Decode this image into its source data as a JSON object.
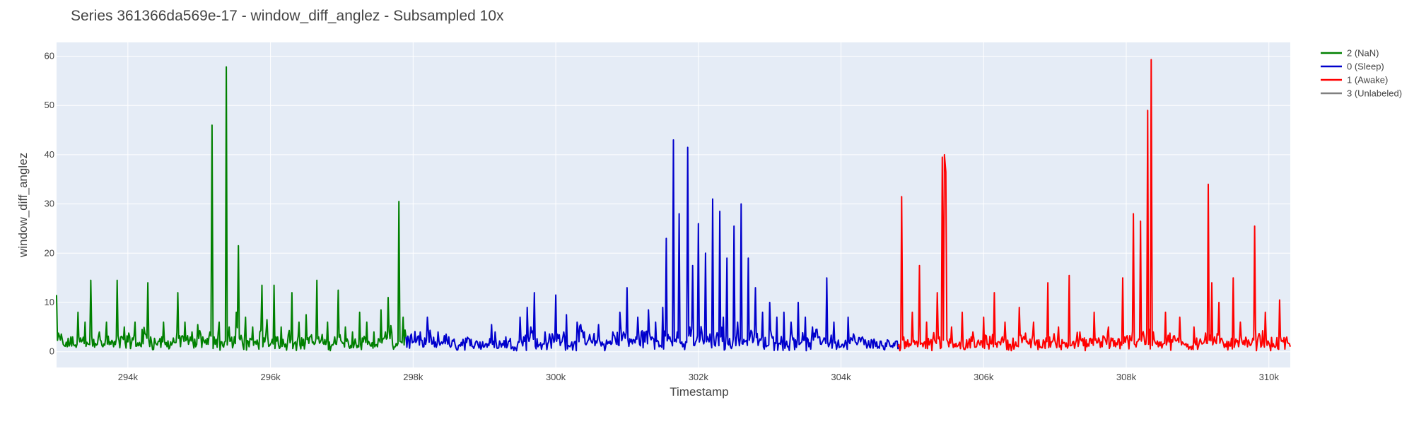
{
  "chart_data": {
    "type": "line",
    "title": "Series 361366da569e-17 - window_diff_anglez - Subsampled 10x",
    "xlabel": "Timestamp",
    "ylabel": "window_diff_anglez",
    "xlim": [
      293000,
      310300
    ],
    "ylim": [
      -3.2,
      62.8
    ],
    "x_ticks": [
      294000,
      296000,
      298000,
      300000,
      302000,
      304000,
      306000,
      308000,
      310000
    ],
    "x_tick_labels": [
      "294k",
      "296k",
      "298k",
      "300k",
      "302k",
      "304k",
      "306k",
      "308k",
      "310k"
    ],
    "y_ticks": [
      0,
      10,
      20,
      30,
      40,
      50,
      60
    ],
    "y_tick_labels": [
      "0",
      "10",
      "20",
      "30",
      "40",
      "50",
      "60"
    ],
    "grid": true,
    "legend_position": "right",
    "plot_background": "#e5ecf6",
    "series": [
      {
        "name": "2 (NaN)",
        "color": "#008000",
        "x_range": [
          293000,
          297900
        ],
        "points": [
          [
            293000,
            11.5
          ],
          [
            293080,
            2.5
          ],
          [
            293150,
            1.0
          ],
          [
            293200,
            3.0
          ],
          [
            293250,
            1.2
          ],
          [
            293300,
            8.0
          ],
          [
            293350,
            2.0
          ],
          [
            293400,
            6.0
          ],
          [
            293450,
            1.5
          ],
          [
            293480,
            14.5
          ],
          [
            293520,
            2.5
          ],
          [
            293600,
            4.0
          ],
          [
            293650,
            1.0
          ],
          [
            293700,
            6.0
          ],
          [
            293750,
            2.0
          ],
          [
            293800,
            1.0
          ],
          [
            293850,
            14.5
          ],
          [
            293900,
            3.0
          ],
          [
            293950,
            5.0
          ],
          [
            294000,
            2.0
          ],
          [
            294100,
            6.0
          ],
          [
            294150,
            1.2
          ],
          [
            294200,
            4.5
          ],
          [
            294280,
            14.0
          ],
          [
            294320,
            3.0
          ],
          [
            294400,
            1.5
          ],
          [
            294500,
            6.0
          ],
          [
            294550,
            1.0
          ],
          [
            294600,
            2.0
          ],
          [
            294700,
            12.0
          ],
          [
            294750,
            3.0
          ],
          [
            294800,
            6.0
          ],
          [
            294850,
            1.5
          ],
          [
            294900,
            4.0
          ],
          [
            294950,
            1.0
          ],
          [
            294980,
            5.5
          ],
          [
            295050,
            3.0
          ],
          [
            295100,
            1.5
          ],
          [
            295150,
            4.0
          ],
          [
            295180,
            46.0
          ],
          [
            295210,
            3.0
          ],
          [
            295280,
            6.0
          ],
          [
            295330,
            1.2
          ],
          [
            295380,
            57.8
          ],
          [
            295420,
            5.0
          ],
          [
            295480,
            1.5
          ],
          [
            295520,
            8.0
          ],
          [
            295550,
            21.5
          ],
          [
            295600,
            2.5
          ],
          [
            295650,
            7.0
          ],
          [
            295700,
            1.0
          ],
          [
            295750,
            5.0
          ],
          [
            295800,
            1.5
          ],
          [
            295850,
            4.0
          ],
          [
            295880,
            13.5
          ],
          [
            295920,
            2.0
          ],
          [
            295950,
            6.5
          ],
          [
            296000,
            1.5
          ],
          [
            296050,
            13.5
          ],
          [
            296100,
            3.0
          ],
          [
            296150,
            5.0
          ],
          [
            296200,
            1.0
          ],
          [
            296250,
            3.5
          ],
          [
            296300,
            12.0
          ],
          [
            296350,
            2.0
          ],
          [
            296400,
            6.0
          ],
          [
            296450,
            1.2
          ],
          [
            296500,
            7.5
          ],
          [
            296550,
            3.0
          ],
          [
            296600,
            2.0
          ],
          [
            296650,
            14.5
          ],
          [
            296700,
            2.0
          ],
          [
            296750,
            1.5
          ],
          [
            296800,
            6.0
          ],
          [
            296850,
            1.0
          ],
          [
            296900,
            3.0
          ],
          [
            296950,
            12.5
          ],
          [
            297000,
            2.0
          ],
          [
            297050,
            5.0
          ],
          [
            297100,
            1.0
          ],
          [
            297150,
            4.0
          ],
          [
            297200,
            1.5
          ],
          [
            297250,
            8.0
          ],
          [
            297300,
            2.0
          ],
          [
            297350,
            6.0
          ],
          [
            297400,
            1.2
          ],
          [
            297450,
            4.0
          ],
          [
            297500,
            1.0
          ],
          [
            297550,
            8.5
          ],
          [
            297600,
            3.0
          ],
          [
            297650,
            11.0
          ],
          [
            297700,
            4.0
          ],
          [
            297750,
            1.0
          ],
          [
            297800,
            30.5
          ],
          [
            297830,
            2.0
          ],
          [
            297860,
            7.0
          ],
          [
            297900,
            3.0
          ]
        ]
      },
      {
        "name": "0 (Sleep)",
        "color": "#0000cc",
        "x_range": [
          297900,
          304800
        ],
        "points": [
          [
            297900,
            3.0
          ],
          [
            298000,
            2.0
          ],
          [
            298100,
            4.0
          ],
          [
            298150,
            1.0
          ],
          [
            298200,
            7.0
          ],
          [
            298250,
            3.0
          ],
          [
            298300,
            1.0
          ],
          [
            298350,
            4.0
          ],
          [
            298400,
            2.0
          ],
          [
            298500,
            3.0
          ],
          [
            298600,
            0.8
          ],
          [
            298700,
            2.5
          ],
          [
            298800,
            1.2
          ],
          [
            298900,
            2.0
          ],
          [
            299000,
            1.0
          ],
          [
            299100,
            5.5
          ],
          [
            299150,
            4.0
          ],
          [
            299200,
            0.8
          ],
          [
            299300,
            3.0
          ],
          [
            299400,
            1.0
          ],
          [
            299500,
            7.0
          ],
          [
            299550,
            3.0
          ],
          [
            299600,
            9.0
          ],
          [
            299650,
            5.0
          ],
          [
            299700,
            12.0
          ],
          [
            299750,
            1.0
          ],
          [
            299800,
            0.5
          ],
          [
            299850,
            4.0
          ],
          [
            299900,
            2.0
          ],
          [
            300000,
            11.5
          ],
          [
            300100,
            3.0
          ],
          [
            300150,
            7.5
          ],
          [
            300200,
            1.0
          ],
          [
            300300,
            6.0
          ],
          [
            300400,
            4.0
          ],
          [
            300500,
            2.0
          ],
          [
            300600,
            5.5
          ],
          [
            300700,
            1.0
          ],
          [
            300800,
            4.0
          ],
          [
            300900,
            8.0
          ],
          [
            300950,
            4.0
          ],
          [
            301000,
            13.0
          ],
          [
            301050,
            2.0
          ],
          [
            301150,
            7.0
          ],
          [
            301200,
            4.0
          ],
          [
            301300,
            8.5
          ],
          [
            301350,
            3.0
          ],
          [
            301400,
            6.0
          ],
          [
            301450,
            1.0
          ],
          [
            301500,
            9.0
          ],
          [
            301550,
            23.0
          ],
          [
            301600,
            3.0
          ],
          [
            301650,
            43.0
          ],
          [
            301690,
            2.0
          ],
          [
            301730,
            28.0
          ],
          [
            301780,
            1.0
          ],
          [
            301850,
            41.5
          ],
          [
            301880,
            5.0
          ],
          [
            301920,
            17.5
          ],
          [
            301960,
            2.0
          ],
          [
            302000,
            26.0
          ],
          [
            302050,
            4.0
          ],
          [
            302100,
            20.0
          ],
          [
            302150,
            2.0
          ],
          [
            302200,
            31.0
          ],
          [
            302250,
            3.0
          ],
          [
            302300,
            28.5
          ],
          [
            302350,
            7.0
          ],
          [
            302400,
            19.0
          ],
          [
            302450,
            1.0
          ],
          [
            302500,
            25.5
          ],
          [
            302550,
            6.0
          ],
          [
            302600,
            30.0
          ],
          [
            302650,
            2.0
          ],
          [
            302700,
            19.0
          ],
          [
            302750,
            4.0
          ],
          [
            302800,
            13.0
          ],
          [
            302850,
            2.0
          ],
          [
            302900,
            8.0
          ],
          [
            302950,
            1.0
          ],
          [
            303000,
            10.0
          ],
          [
            303050,
            3.0
          ],
          [
            303100,
            7.0
          ],
          [
            303150,
            1.5
          ],
          [
            303200,
            8.0
          ],
          [
            303250,
            1.0
          ],
          [
            303300,
            6.0
          ],
          [
            303400,
            10.0
          ],
          [
            303450,
            2.0
          ],
          [
            303500,
            7.0
          ],
          [
            303550,
            1.0
          ],
          [
            303600,
            5.0
          ],
          [
            303700,
            3.0
          ],
          [
            303800,
            15.0
          ],
          [
            303850,
            2.0
          ],
          [
            303900,
            6.0
          ],
          [
            304000,
            1.0
          ],
          [
            304100,
            7.0
          ],
          [
            304200,
            2.0
          ],
          [
            304300,
            3.0
          ],
          [
            304400,
            1.0
          ],
          [
            304500,
            2.0
          ],
          [
            304600,
            0.5
          ],
          [
            304700,
            1.0
          ],
          [
            304800,
            0.5
          ]
        ]
      },
      {
        "name": "1 (Awake)",
        "color": "#ff0000",
        "x_range": [
          304800,
          310300
        ],
        "points": [
          [
            304800,
            1.0
          ],
          [
            304850,
            31.5
          ],
          [
            304880,
            3.0
          ],
          [
            304950,
            1.0
          ],
          [
            305000,
            8.0
          ],
          [
            305050,
            2.0
          ],
          [
            305100,
            17.5
          ],
          [
            305150,
            1.0
          ],
          [
            305200,
            6.0
          ],
          [
            305250,
            2.0
          ],
          [
            305350,
            12.0
          ],
          [
            305380,
            3.0
          ],
          [
            305420,
            39.5
          ],
          [
            305450,
            40.0
          ],
          [
            305470,
            36.5
          ],
          [
            305500,
            2.0
          ],
          [
            305550,
            5.0
          ],
          [
            305600,
            1.0
          ],
          [
            305700,
            8.0
          ],
          [
            305750,
            1.0
          ],
          [
            305850,
            4.0
          ],
          [
            305900,
            1.0
          ],
          [
            306000,
            7.0
          ],
          [
            306050,
            1.5
          ],
          [
            306150,
            12.0
          ],
          [
            306200,
            2.0
          ],
          [
            306300,
            6.0
          ],
          [
            306400,
            1.0
          ],
          [
            306500,
            9.0
          ],
          [
            306600,
            2.0
          ],
          [
            306700,
            6.0
          ],
          [
            306800,
            1.0
          ],
          [
            306900,
            14.0
          ],
          [
            306950,
            2.0
          ],
          [
            307050,
            5.0
          ],
          [
            307150,
            1.0
          ],
          [
            307200,
            15.5
          ],
          [
            307250,
            2.0
          ],
          [
            307350,
            4.0
          ],
          [
            307450,
            1.0
          ],
          [
            307550,
            8.0
          ],
          [
            307650,
            2.0
          ],
          [
            307750,
            5.0
          ],
          [
            307850,
            1.0
          ],
          [
            307950,
            15.0
          ],
          [
            308000,
            3.0
          ],
          [
            308100,
            28.0
          ],
          [
            308150,
            2.0
          ],
          [
            308200,
            26.5
          ],
          [
            308250,
            3.0
          ],
          [
            308300,
            49.0
          ],
          [
            308350,
            59.3
          ],
          [
            308380,
            4.0
          ],
          [
            308450,
            1.0
          ],
          [
            308550,
            8.0
          ],
          [
            308650,
            2.0
          ],
          [
            308750,
            7.0
          ],
          [
            308850,
            1.0
          ],
          [
            308950,
            5.0
          ],
          [
            309050,
            2.0
          ],
          [
            309150,
            34.0
          ],
          [
            309200,
            14.0
          ],
          [
            309250,
            2.0
          ],
          [
            309300,
            10.0
          ],
          [
            309400,
            1.0
          ],
          [
            309500,
            15.0
          ],
          [
            309550,
            2.0
          ],
          [
            309600,
            6.0
          ],
          [
            309700,
            1.0
          ],
          [
            309800,
            25.5
          ],
          [
            309850,
            3.0
          ],
          [
            309950,
            8.0
          ],
          [
            310050,
            1.0
          ],
          [
            310150,
            10.5
          ],
          [
            310200,
            2.0
          ],
          [
            310300,
            1.0
          ]
        ]
      },
      {
        "name": "3 (Unlabeled)",
        "color": "#808080",
        "points": []
      }
    ]
  }
}
